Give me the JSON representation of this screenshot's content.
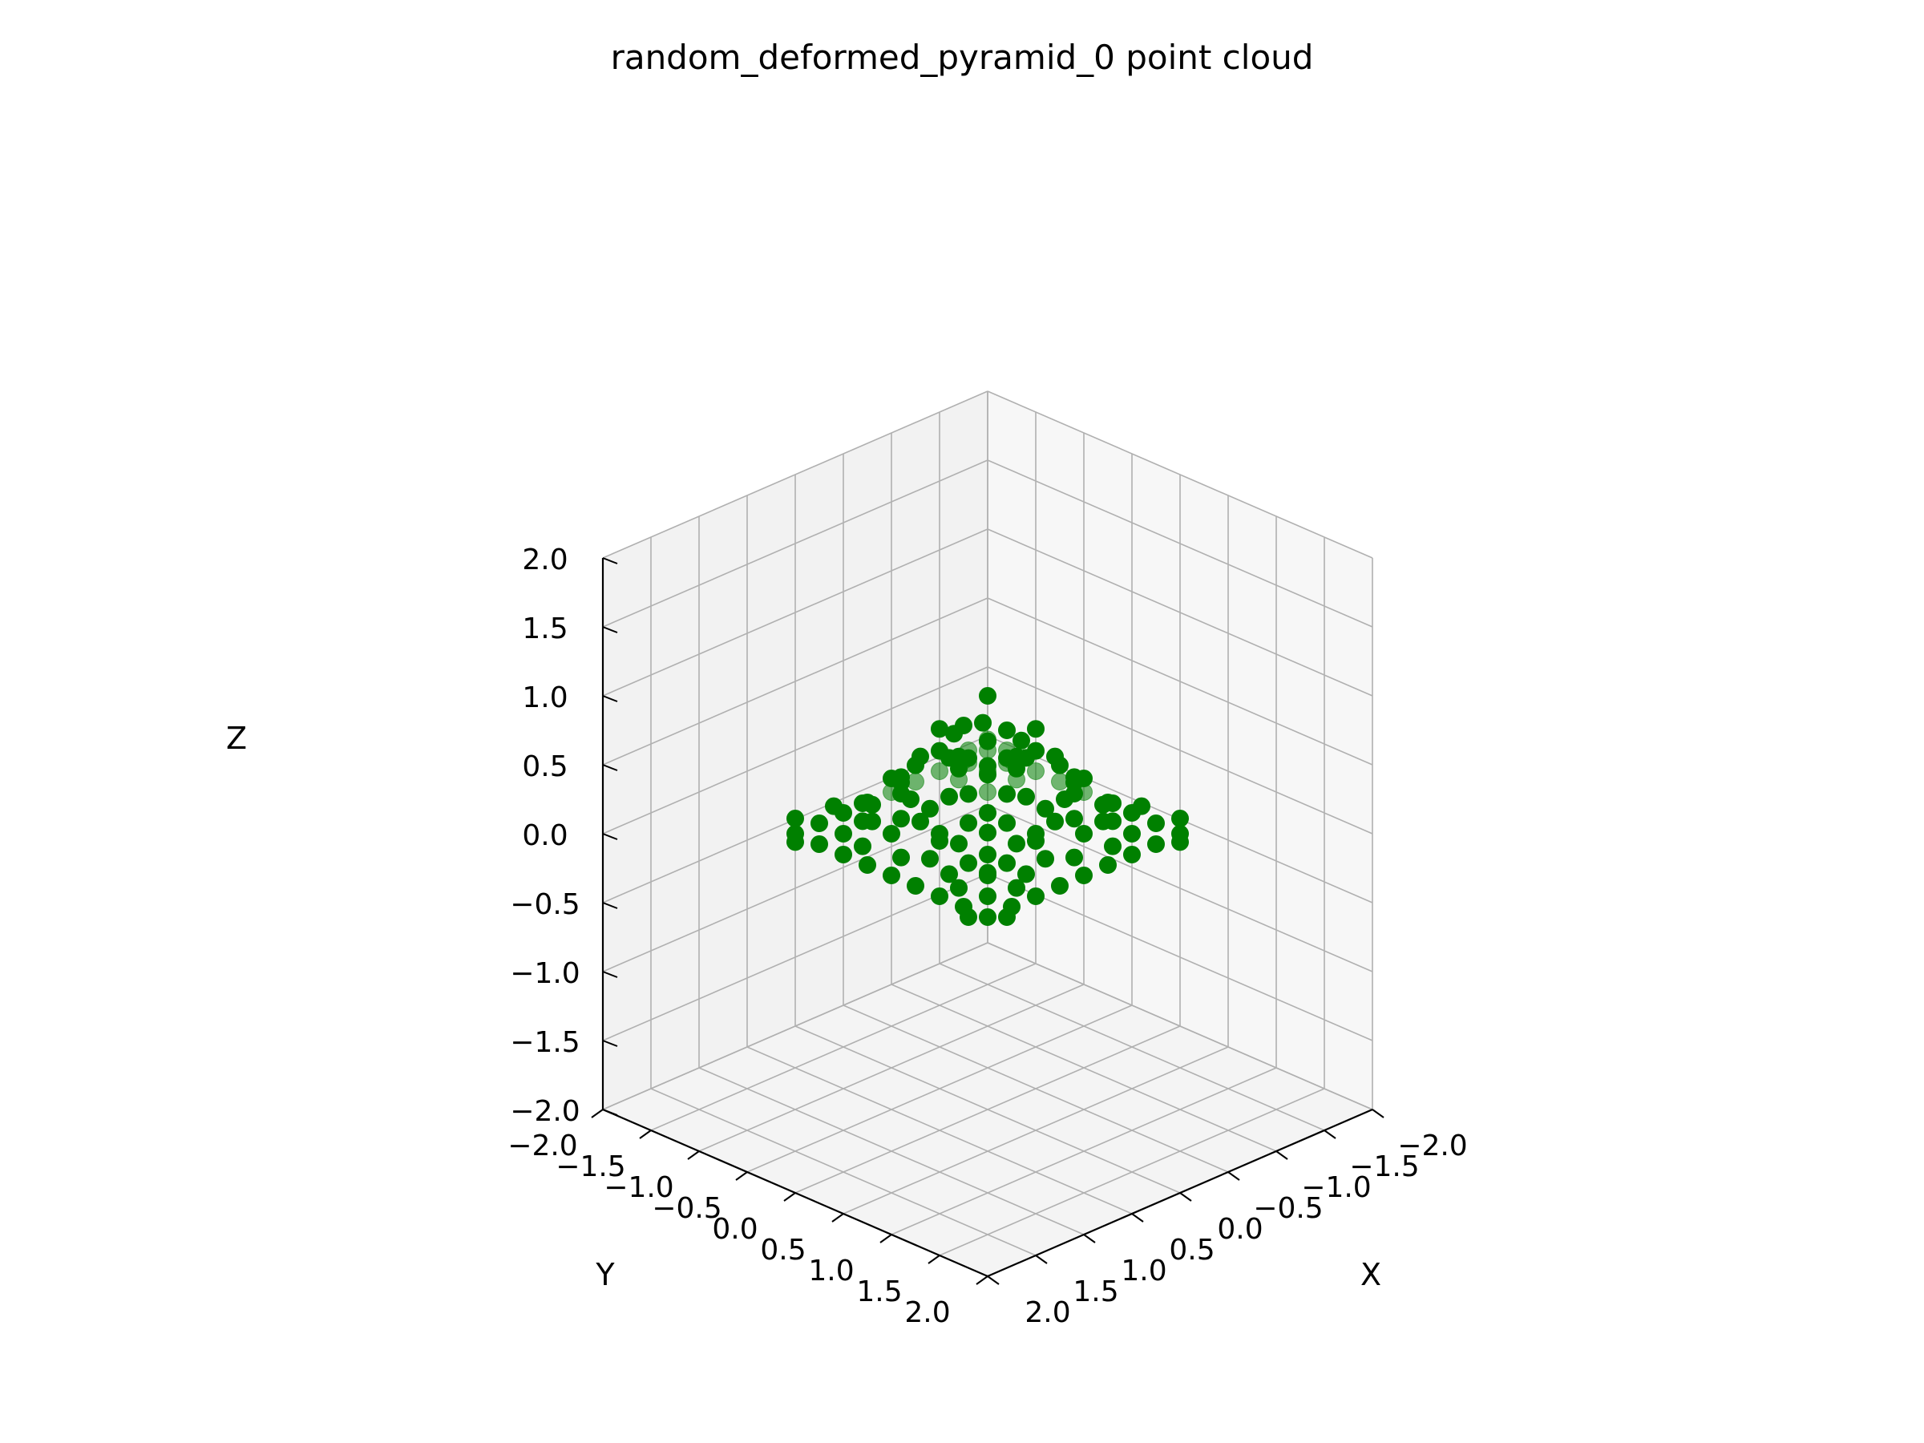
{
  "chart_data": {
    "type": "scatter",
    "title": "random_deformed_pyramid_0 point cloud",
    "xlabel": "X",
    "ylabel": "Y",
    "zlabel": "Z",
    "xlim": [
      -2.0,
      2.0
    ],
    "ylim": [
      -2.0,
      2.0
    ],
    "zlim": [
      -2.0,
      2.0
    ],
    "grid": true,
    "x_ticks": [
      "−2.0",
      "−1.5",
      "−1.0",
      "−0.5",
      "0.0",
      "0.5",
      "1.0",
      "1.5",
      "2.0"
    ],
    "y_ticks": [
      "−2.0",
      "−1.5",
      "−1.0",
      "−0.5",
      "0.0",
      "0.5",
      "1.0",
      "1.5",
      "2.0"
    ],
    "z_ticks": [
      "−2.0",
      "−1.5",
      "−1.0",
      "−0.5",
      "0.0",
      "0.5",
      "1.0",
      "1.5",
      "2.0"
    ],
    "marker_color": "#008000",
    "points": [
      [
        0.0,
        0.0,
        1.0
      ],
      [
        0.1,
        0.05,
        0.85
      ],
      [
        -0.1,
        0.1,
        0.75
      ],
      [
        0.15,
        -0.1,
        0.8
      ],
      [
        0.3,
        0.0,
        0.65
      ],
      [
        0.0,
        0.3,
        0.65
      ],
      [
        -0.3,
        0.05,
        0.6
      ],
      [
        0.05,
        -0.3,
        0.65
      ],
      [
        0.2,
        0.2,
        0.55
      ],
      [
        -0.2,
        0.2,
        0.55
      ],
      [
        0.2,
        -0.2,
        0.55
      ],
      [
        -0.2,
        -0.2,
        0.55
      ],
      [
        0.5,
        0.1,
        0.45
      ],
      [
        0.1,
        0.5,
        0.45
      ],
      [
        -0.5,
        0.0,
        0.45
      ],
      [
        0.0,
        -0.5,
        0.45
      ],
      [
        0.4,
        0.4,
        0.25
      ],
      [
        -0.4,
        0.4,
        0.25
      ],
      [
        0.4,
        -0.4,
        0.25
      ],
      [
        -0.4,
        -0.4,
        0.25
      ],
      [
        0.7,
        0.0,
        0.3
      ],
      [
        0.0,
        0.7,
        0.3
      ],
      [
        -0.7,
        0.05,
        0.3
      ],
      [
        0.05,
        -0.7,
        0.3
      ],
      [
        0.6,
        0.3,
        0.2
      ],
      [
        0.3,
        0.6,
        0.2
      ],
      [
        -0.6,
        0.3,
        0.2
      ],
      [
        -0.3,
        0.6,
        0.2
      ],
      [
        0.6,
        -0.3,
        0.2
      ],
      [
        0.3,
        -0.6,
        0.2
      ],
      [
        -0.6,
        -0.3,
        0.2
      ],
      [
        -0.3,
        -0.6,
        0.2
      ],
      [
        0.9,
        0.0,
        0.1
      ],
      [
        0.0,
        0.9,
        0.1
      ],
      [
        -0.9,
        0.0,
        0.1
      ],
      [
        0.0,
        -0.9,
        0.1
      ],
      [
        0.8,
        0.5,
        0.0
      ],
      [
        0.5,
        0.8,
        0.0
      ],
      [
        -0.8,
        0.5,
        0.0
      ],
      [
        -0.5,
        0.8,
        0.0
      ],
      [
        0.8,
        -0.5,
        0.0
      ],
      [
        0.5,
        -0.8,
        0.0
      ],
      [
        -0.8,
        -0.5,
        0.0
      ],
      [
        -0.5,
        -0.8,
        0.0
      ],
      [
        1.0,
        1.0,
        0.0
      ],
      [
        -1.0,
        1.0,
        0.0
      ],
      [
        1.0,
        -1.0,
        0.0
      ],
      [
        -1.0,
        -1.0,
        0.0
      ],
      [
        1.0,
        0.0,
        0.0
      ],
      [
        0.0,
        1.0,
        0.0
      ],
      [
        -1.0,
        0.0,
        0.0
      ],
      [
        0.0,
        -1.0,
        0.0
      ],
      [
        1.0,
        0.25,
        0.0
      ],
      [
        1.0,
        -0.25,
        0.0
      ],
      [
        1.0,
        0.5,
        0.0
      ],
      [
        1.0,
        -0.5,
        0.0
      ],
      [
        1.0,
        0.75,
        0.0
      ],
      [
        1.0,
        -0.75,
        0.0
      ],
      [
        -1.0,
        0.25,
        0.0
      ],
      [
        -1.0,
        -0.25,
        0.0
      ],
      [
        -1.0,
        0.5,
        0.0
      ],
      [
        -1.0,
        -0.5,
        0.0
      ],
      [
        -1.0,
        0.75,
        0.0
      ],
      [
        -1.0,
        -0.75,
        0.0
      ],
      [
        0.25,
        1.0,
        0.0
      ],
      [
        -0.25,
        1.0,
        0.0
      ],
      [
        0.5,
        1.0,
        0.0
      ],
      [
        -0.5,
        1.0,
        0.0
      ],
      [
        0.75,
        1.0,
        0.0
      ],
      [
        -0.75,
        1.0,
        0.0
      ],
      [
        0.25,
        -1.0,
        0.0
      ],
      [
        -0.25,
        -1.0,
        0.0
      ],
      [
        0.5,
        -1.0,
        0.0
      ],
      [
        -0.5,
        -1.0,
        0.0
      ],
      [
        0.75,
        -1.0,
        0.0
      ],
      [
        -0.75,
        -1.0,
        0.0
      ],
      [
        0.75,
        0.75,
        0.0
      ],
      [
        -0.75,
        0.75,
        0.0
      ],
      [
        0.75,
        -0.75,
        0.0
      ],
      [
        -0.75,
        -0.75,
        0.0
      ],
      [
        0.5,
        0.5,
        0.0
      ],
      [
        -0.5,
        0.5,
        0.0
      ],
      [
        0.5,
        -0.5,
        0.0
      ],
      [
        -0.5,
        -0.5,
        0.0
      ],
      [
        0.25,
        0.25,
        0.0
      ],
      [
        -0.25,
        0.25,
        0.0
      ],
      [
        0.25,
        -0.25,
        0.0
      ],
      [
        -0.25,
        -0.25,
        0.0
      ],
      [
        0.6,
        0.0,
        0.0
      ],
      [
        0.0,
        0.6,
        0.0
      ],
      [
        -0.6,
        0.0,
        0.0
      ],
      [
        0.0,
        -0.6,
        0.0
      ],
      [
        1.1,
        0.9,
        0.0
      ],
      [
        0.9,
        1.1,
        0.0
      ],
      [
        -1.1,
        0.9,
        0.05
      ],
      [
        -0.9,
        1.1,
        0.0
      ],
      [
        1.1,
        -0.9,
        0.0
      ],
      [
        0.9,
        -1.1,
        0.05
      ],
      [
        -1.1,
        -0.9,
        0.0
      ],
      [
        -0.9,
        -1.1,
        0.0
      ],
      [
        0.8,
        0.8,
        0.2
      ],
      [
        -0.8,
        0.8,
        0.2
      ],
      [
        0.8,
        -0.8,
        0.2
      ],
      [
        -0.8,
        -0.8,
        0.2
      ],
      [
        0.7,
        0.5,
        0.15
      ],
      [
        -0.7,
        0.5,
        0.15
      ],
      [
        0.7,
        -0.5,
        0.15
      ],
      [
        -0.7,
        -0.5,
        0.15
      ],
      [
        0.5,
        0.7,
        0.15
      ],
      [
        -0.5,
        0.7,
        0.15
      ],
      [
        0.5,
        -0.7,
        0.15
      ],
      [
        -0.5,
        -0.7,
        0.15
      ],
      [
        0.35,
        0.15,
        0.7
      ],
      [
        -0.35,
        0.15,
        0.7
      ],
      [
        0.15,
        0.35,
        0.7
      ],
      [
        0.15,
        -0.35,
        0.7
      ],
      [
        0.45,
        0.25,
        0.5
      ],
      [
        -0.45,
        0.25,
        0.5
      ],
      [
        0.25,
        0.45,
        0.5
      ],
      [
        0.25,
        -0.45,
        0.5
      ],
      [
        0.55,
        0.35,
        0.35
      ],
      [
        -0.55,
        0.35,
        0.35
      ],
      [
        0.35,
        0.55,
        0.35
      ],
      [
        0.35,
        -0.55,
        0.35
      ],
      [
        0.75,
        0.25,
        0.25
      ],
      [
        -0.75,
        0.25,
        0.25
      ],
      [
        0.25,
        0.75,
        0.25
      ],
      [
        0.25,
        -0.75,
        0.25
      ],
      [
        0.85,
        0.45,
        0.1
      ],
      [
        -0.85,
        0.45,
        0.1
      ],
      [
        0.45,
        0.85,
        0.1
      ],
      [
        0.45,
        -0.85,
        0.1
      ]
    ]
  }
}
